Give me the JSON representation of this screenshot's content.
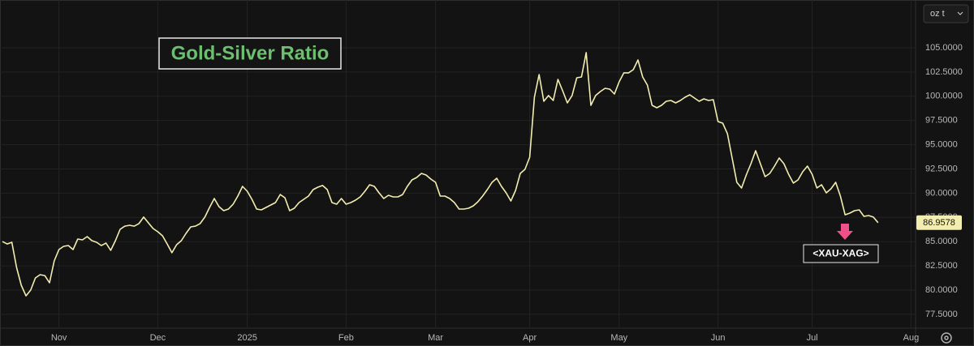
{
  "chart_data": {
    "type": "line",
    "title": "Gold-Silver Ratio",
    "color": "#f3edb0",
    "unit_selector": "oz t",
    "annotation": "<XAU-XAG>",
    "grid": true,
    "ylim": [
      76.07,
      109.93
    ],
    "yticks": [
      {
        "value": 77.5,
        "label": "77.5000"
      },
      {
        "value": 80,
        "label": "80.0000"
      },
      {
        "value": 82.5,
        "label": "82.5000"
      },
      {
        "value": 85,
        "label": "85.0000"
      },
      {
        "value": 87.5,
        "label": "87.5000"
      },
      {
        "value": 90,
        "label": "90.0000"
      },
      {
        "value": 92.5,
        "label": "92.5000"
      },
      {
        "value": 95,
        "label": "95.0000"
      },
      {
        "value": 97.5,
        "label": "97.5000"
      },
      {
        "value": 100,
        "label": "100.0000"
      },
      {
        "value": 102.5,
        "label": "102.5000"
      },
      {
        "value": 105,
        "label": "105.0000"
      }
    ],
    "categories": [
      null,
      null,
      null,
      null,
      null,
      null,
      null,
      null,
      null,
      null,
      null,
      null,
      "Nov",
      null,
      null,
      null,
      null,
      null,
      null,
      null,
      null,
      null,
      null,
      null,
      null,
      null,
      null,
      null,
      null,
      null,
      null,
      null,
      null,
      "Dec",
      null,
      null,
      null,
      null,
      null,
      null,
      null,
      null,
      null,
      null,
      null,
      null,
      null,
      null,
      null,
      null,
      null,
      null,
      "2025",
      null,
      null,
      null,
      null,
      null,
      null,
      null,
      null,
      null,
      null,
      null,
      null,
      null,
      null,
      null,
      null,
      null,
      null,
      null,
      null,
      "Feb",
      null,
      null,
      null,
      null,
      null,
      null,
      null,
      null,
      null,
      null,
      null,
      null,
      null,
      null,
      null,
      null,
      null,
      null,
      "Mar",
      null,
      null,
      null,
      null,
      null,
      null,
      null,
      null,
      null,
      null,
      null,
      null,
      null,
      null,
      null,
      null,
      null,
      null,
      null,
      "Apr",
      null,
      null,
      null,
      null,
      null,
      null,
      null,
      null,
      null,
      null,
      null,
      null,
      null,
      null,
      null,
      null,
      null,
      null,
      "May",
      null,
      null,
      null,
      null,
      null,
      null,
      null,
      null,
      null,
      null,
      null,
      null,
      null,
      null,
      null,
      null,
      null,
      null,
      null,
      null,
      "Jun",
      null,
      null,
      null,
      null,
      null,
      null,
      null,
      null,
      null,
      null,
      null,
      null,
      null,
      null,
      null,
      null,
      null,
      null,
      null,
      "Jul",
      null,
      null,
      null,
      null,
      null,
      null,
      null,
      null,
      null,
      null,
      null,
      null,
      null,
      null,
      null,
      null,
      null,
      null,
      null,
      null,
      "Aug"
    ],
    "values": [
      85.01,
      84.76,
      84.93,
      82.34,
      80.5,
      79.41,
      80.0,
      81.25,
      81.59,
      81.5,
      80.75,
      83.01,
      84.18,
      84.51,
      84.6,
      84.18,
      85.27,
      85.18,
      85.52,
      85.1,
      84.93,
      84.6,
      84.85,
      84.1,
      85.1,
      86.27,
      86.6,
      86.69,
      86.6,
      86.86,
      87.53,
      86.94,
      86.35,
      86.02,
      85.6,
      84.76,
      83.85,
      84.68,
      85.1,
      85.85,
      86.52,
      86.6,
      86.86,
      87.53,
      88.53,
      89.45,
      88.61,
      88.19,
      88.36,
      88.86,
      89.7,
      90.7,
      90.2,
      89.36,
      88.36,
      88.28,
      88.53,
      88.78,
      89.03,
      89.86,
      89.53,
      88.19,
      88.44,
      89.03,
      89.36,
      89.7,
      90.37,
      90.62,
      90.79,
      90.37,
      89.03,
      88.86,
      89.45,
      88.86,
      89.03,
      89.28,
      89.61,
      90.2,
      90.87,
      90.7,
      90.03,
      89.45,
      89.78,
      89.61,
      89.61,
      89.86,
      90.7,
      91.37,
      91.62,
      92.04,
      91.87,
      91.45,
      91.12,
      89.7,
      89.7,
      89.45,
      89.03,
      88.36,
      88.36,
      88.44,
      88.69,
      89.11,
      89.7,
      90.37,
      91.12,
      91.54,
      90.7,
      90.03,
      89.2,
      90.28,
      92.04,
      92.46,
      93.71,
      99.9,
      102.24,
      99.48,
      100.07,
      99.56,
      101.74,
      100.57,
      99.31,
      100.07,
      101.9,
      101.99,
      104.5,
      99.06,
      100.07,
      100.48,
      100.82,
      100.73,
      100.23,
      101.49,
      102.41,
      102.41,
      102.74,
      103.74,
      101.99,
      101.15,
      99.06,
      98.81,
      99.06,
      99.48,
      99.56,
      99.31,
      99.56,
      99.9,
      100.15,
      99.81,
      99.48,
      99.73,
      99.56,
      99.65,
      97.39,
      97.22,
      96.14,
      93.63,
      91.12,
      90.53,
      91.87,
      93.04,
      94.38,
      93.04,
      91.7,
      92.04,
      92.79,
      93.63,
      93.04,
      91.95,
      91.04,
      91.37,
      92.21,
      92.79,
      91.95,
      90.53,
      90.87,
      90.03,
      90.45,
      91.12,
      89.7,
      87.77,
      87.94,
      88.19,
      88.28,
      87.61,
      87.69,
      87.53,
      86.9578,
      null,
      null,
      null,
      null,
      null,
      null,
      null
    ]
  }
}
